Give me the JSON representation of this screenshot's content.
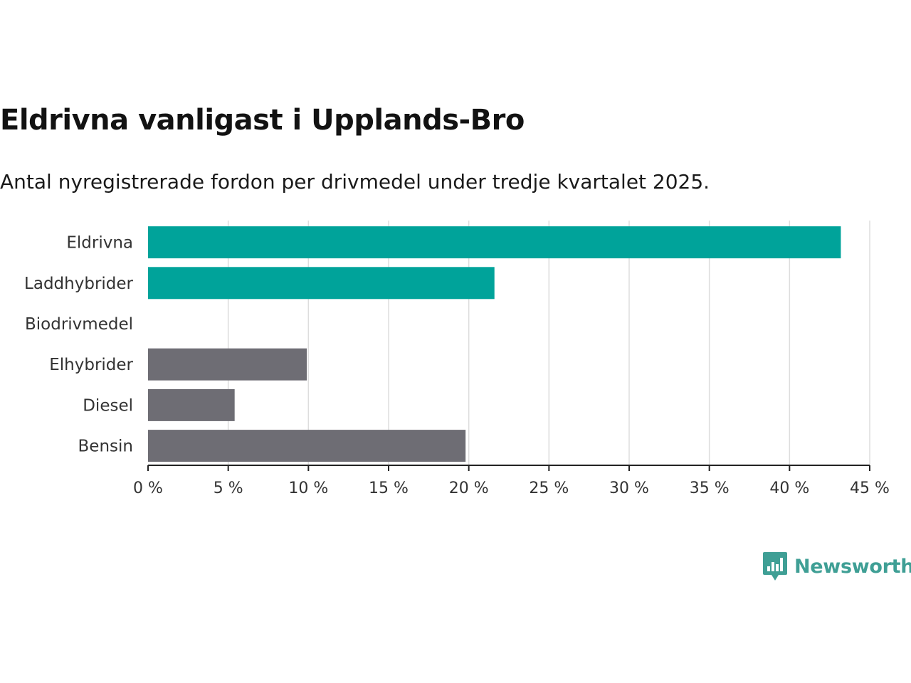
{
  "chart_data": {
    "type": "bar",
    "orientation": "horizontal",
    "title": "Eldrivna vanligast i Upplands-Bro",
    "subtitle": "Antal nyregistrerade fordon per drivmedel under tredje kvartalet 2025.",
    "categories": [
      "Eldrivna",
      "Laddhybrider",
      "Biodrivmedel",
      "Elhybrider",
      "Diesel",
      "Bensin"
    ],
    "values": [
      43.2,
      21.6,
      0,
      9.9,
      5.4,
      19.8
    ],
    "colors": [
      "#00a39a",
      "#00a39a",
      "#00a39a",
      "#6e6d74",
      "#6e6d74",
      "#6e6d74"
    ],
    "xlim": [
      0,
      45
    ],
    "xticks": [
      0,
      5,
      10,
      15,
      20,
      25,
      30,
      35,
      40,
      45
    ],
    "xtick_labels": [
      "0 %",
      "5 %",
      "10 %",
      "15 %",
      "20 %",
      "25 %",
      "30 %",
      "35 %",
      "40 %",
      "45 %"
    ],
    "grid": true,
    "xlabel": "",
    "ylabel": ""
  },
  "brand": {
    "name": "Newsworthy",
    "color": "#3f9f95",
    "icon": "bar-chart-speech-bubble-icon"
  }
}
